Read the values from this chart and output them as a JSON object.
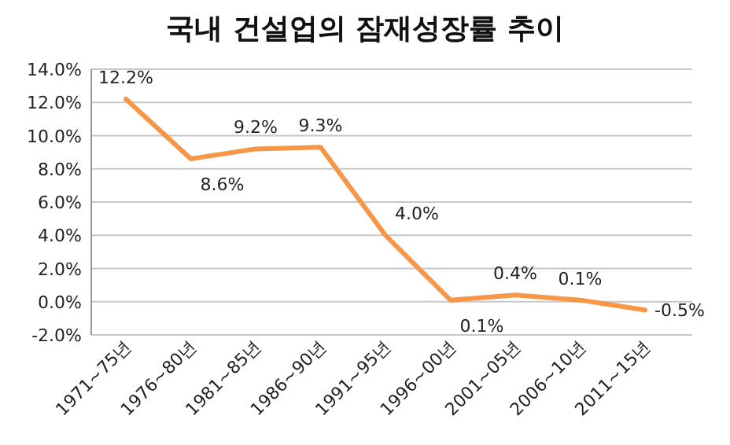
{
  "chart_data": {
    "type": "line",
    "title": "국내 건설업의 잠재성장률 추이",
    "categories": [
      "1971~75년",
      "1976~80년",
      "1981~85년",
      "1986~90년",
      "1991~95년",
      "1996~00년",
      "2001~05년",
      "2006~10년",
      "2011~15년"
    ],
    "series": [
      {
        "color": "#f79646",
        "values": [
          12.2,
          8.6,
          9.2,
          9.3,
          4.0,
          0.1,
          0.4,
          0.1,
          -0.5
        ],
        "value_labels": [
          "12.2%",
          "8.6%",
          "9.2%",
          "9.3%",
          "4.0%",
          "0.1%",
          "0.4%",
          "0.1%",
          "-0.5%"
        ]
      }
    ],
    "ylim": [
      -2,
      14
    ],
    "yticks": [
      {
        "value": -2,
        "label": "-2.0%"
      },
      {
        "value": 0,
        "label": "0.0%"
      },
      {
        "value": 2,
        "label": "2.0%"
      },
      {
        "value": 4,
        "label": "4.0%"
      },
      {
        "value": 6,
        "label": "6.0%"
      },
      {
        "value": 8,
        "label": "8.0%"
      },
      {
        "value": 10,
        "label": "10.0%"
      },
      {
        "value": 12,
        "label": "12.0%"
      },
      {
        "value": 14,
        "label": "14.0%"
      }
    ],
    "grid": "y",
    "marker": "none",
    "line_style": "solid"
  }
}
